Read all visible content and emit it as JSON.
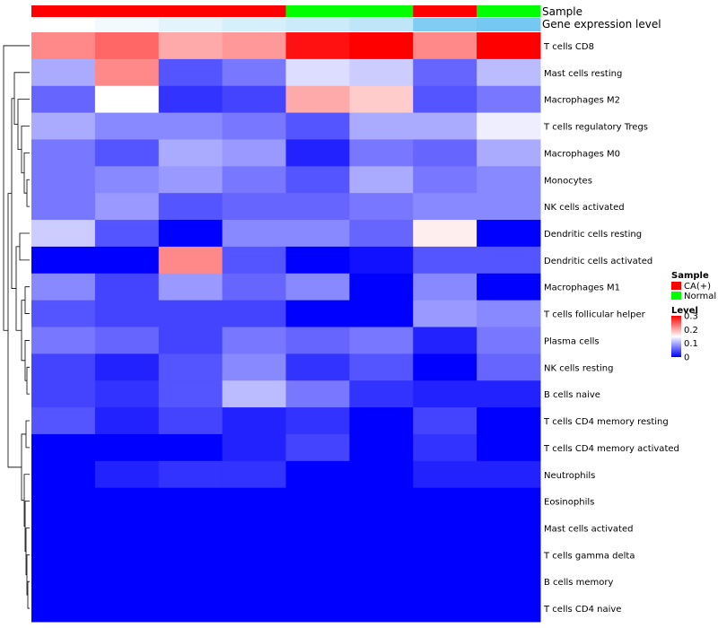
{
  "chart_data": {
    "type": "heatmap",
    "tracks": {
      "sample_label": "Sample",
      "expression_label": "Gene expression level",
      "sample_groups": [
        "CA(+)",
        "CA(+)",
        "CA(+)",
        "CA(+)",
        "Normal",
        "Normal",
        "CA(+)",
        "Normal"
      ],
      "expression_levels": [
        0.0,
        0.05,
        0.12,
        0.18,
        0.22,
        0.28,
        0.55,
        0.6
      ]
    },
    "rows": [
      "T cells CD8",
      "Mast cells resting",
      "Macrophages M2",
      "T cells regulatory  Tregs",
      "Macrophages M0",
      "Monocytes",
      "NK cells activated",
      "Dendritic cells resting",
      "Dendritic cells activated",
      "Macrophages M1",
      "T cells follicular helper",
      "Plasma cells",
      "NK cells resting",
      "B cells naive",
      "T cells CD4 memory resting",
      "T cells CD4 memory activated",
      "Neutrophils",
      "Eosinophils",
      "Mast cells activated",
      "T cells gamma delta",
      "B cells memory",
      "T cells CD4 naive"
    ],
    "values": [
      [
        0.22,
        0.24,
        0.2,
        0.21,
        0.29,
        0.3,
        0.22,
        0.3
      ],
      [
        0.1,
        0.22,
        0.05,
        0.07,
        0.13,
        0.12,
        0.06,
        0.11
      ],
      [
        0.06,
        0.15,
        0.03,
        0.04,
        0.2,
        0.18,
        0.05,
        0.07
      ],
      [
        0.1,
        0.08,
        0.08,
        0.07,
        0.05,
        0.1,
        0.1,
        0.14
      ],
      [
        0.07,
        0.05,
        0.1,
        0.09,
        0.02,
        0.07,
        0.06,
        0.1
      ],
      [
        0.07,
        0.08,
        0.09,
        0.07,
        0.05,
        0.1,
        0.07,
        0.08
      ],
      [
        0.07,
        0.09,
        0.05,
        0.06,
        0.06,
        0.07,
        0.08,
        0.08
      ],
      [
        0.12,
        0.05,
        0.0,
        0.08,
        0.08,
        0.06,
        0.16,
        0.0
      ],
      [
        0.0,
        0.0,
        0.22,
        0.05,
        0.0,
        0.01,
        0.05,
        0.05
      ],
      [
        0.08,
        0.04,
        0.09,
        0.06,
        0.08,
        0.0,
        0.08,
        0.0
      ],
      [
        0.05,
        0.04,
        0.04,
        0.04,
        0.0,
        0.0,
        0.09,
        0.08
      ],
      [
        0.07,
        0.06,
        0.04,
        0.07,
        0.06,
        0.07,
        0.02,
        0.07
      ],
      [
        0.04,
        0.02,
        0.05,
        0.08,
        0.03,
        0.05,
        0.0,
        0.06
      ],
      [
        0.04,
        0.03,
        0.05,
        0.11,
        0.07,
        0.03,
        0.02,
        0.02
      ],
      [
        0.05,
        0.02,
        0.04,
        0.02,
        0.03,
        0.0,
        0.04,
        0.0
      ],
      [
        0.0,
        0.0,
        0.0,
        0.02,
        0.04,
        0.0,
        0.03,
        0.0
      ],
      [
        0.0,
        0.02,
        0.03,
        0.03,
        0.0,
        0.0,
        0.02,
        0.02
      ],
      [
        0.0,
        0.0,
        0.0,
        0.0,
        0.0,
        0.0,
        0.0,
        0.0
      ],
      [
        0.0,
        0.0,
        0.0,
        0.0,
        0.0,
        0.0,
        0.0,
        0.0
      ],
      [
        0.0,
        0.0,
        0.0,
        0.0,
        0.0,
        0.0,
        0.0,
        0.0
      ],
      [
        0.0,
        0.0,
        0.0,
        0.0,
        0.0,
        0.0,
        0.0,
        0.0
      ],
      [
        0.0,
        0.0,
        0.0,
        0.0,
        0.0,
        0.0,
        0.0,
        0.0
      ]
    ],
    "color_scale": {
      "min": 0,
      "max": 0.3,
      "low_color": "#0000ff",
      "mid_color": "#ffffff",
      "high_color": "#ff0000"
    },
    "legend": {
      "sample_title": "Sample",
      "sample_entries": [
        {
          "label": "CA(+)",
          "color": "#ff0000"
        },
        {
          "label": "Normal",
          "color": "#00ff00"
        }
      ],
      "level_title": "Level",
      "level_ticks": [
        "0.3",
        "0.2",
        "0.1",
        "0"
      ],
      "level_tick_values": [
        0.3,
        0.2,
        0.1,
        0.0
      ]
    },
    "expression_track_colors": {
      "low": "#ffffff",
      "high": "#6ec6f0"
    },
    "dendrogram": "left-side row clustering"
  }
}
